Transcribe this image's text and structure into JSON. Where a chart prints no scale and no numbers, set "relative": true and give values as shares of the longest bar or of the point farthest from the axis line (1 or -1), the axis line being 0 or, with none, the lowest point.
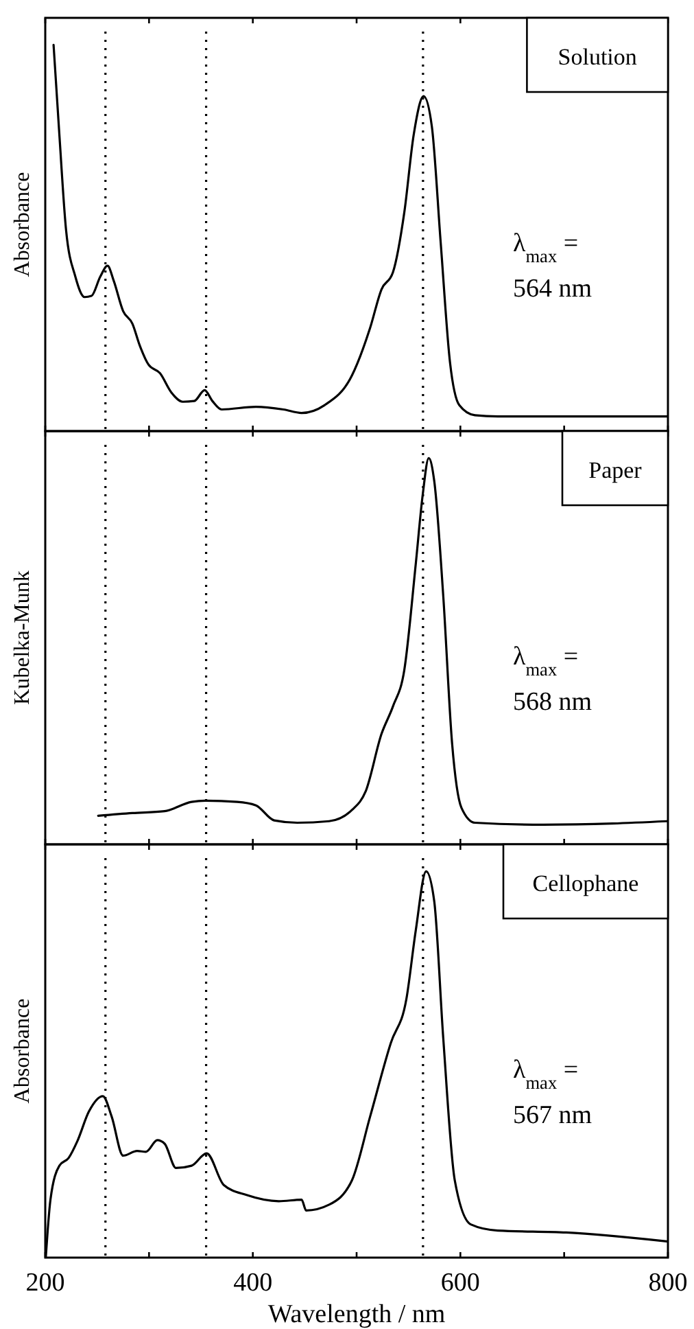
{
  "chart_data": [
    {
      "type": "line",
      "title": "Solution",
      "ylabel": "Absorbance",
      "relative": true,
      "tick_labels": false,
      "xlim": [
        200,
        800
      ],
      "xticks": [
        200,
        {
          "value": 300,
          "label": null
        },
        400,
        {
          "value": 500,
          "label": null
        },
        600,
        {
          "value": 700,
          "label": null
        },
        800
      ],
      "line_style": "solid",
      "annotations": [
        "λ$_{max}$ =",
        "564 nm"
      ],
      "ref_lines": [
        {
          "axis": "x",
          "value": 258,
          "label": null,
          "color": "#000000",
          "line_style": "dotted"
        },
        {
          "axis": "x",
          "value": 355,
          "label": null,
          "color": "#000000",
          "line_style": "dotted"
        },
        {
          "axis": "x",
          "value": 564,
          "label": null,
          "color": "#000000",
          "line_style": "dotted"
        }
      ],
      "series": [
        {
          "color": "#000000",
          "x": [
            208,
            213.6,
            220,
            229,
            238,
            244.5,
            253,
            260,
            266,
            275,
            284,
            291,
            299.5,
            310.5,
            321.5,
            332.5,
            343.6,
            353.6,
            361,
            370,
            403,
            429.5,
            447,
            469,
            495.5,
            513,
            524,
            535,
            546,
            555,
            564.6,
            572.5,
            581,
            590,
            599,
            614,
            636,
            799
          ],
          "values": [
            1,
            0.767,
            0.522,
            0.4,
            0.347,
            0.35,
            0.4,
            0.428,
            0.389,
            0.311,
            0.278,
            0.222,
            0.172,
            0.15,
            0.1,
            0.076,
            0.078,
            0.106,
            0.078,
            0.056,
            0.063,
            0.056,
            0.047,
            0.067,
            0.144,
            0.267,
            0.367,
            0.411,
            0.567,
            0.767,
            0.867,
            0.789,
            0.489,
            0.178,
            0.067,
            0.041,
            0.038,
            0.038
          ]
        }
      ]
    },
    {
      "type": "line",
      "title": "Paper",
      "ylabel": "Kubelka-Munk",
      "relative": true,
      "tick_labels": false,
      "xlim": [
        200,
        800
      ],
      "xticks": [
        200,
        {
          "value": 300,
          "label": null
        },
        400,
        {
          "value": 500,
          "label": null
        },
        600,
        {
          "value": 700,
          "label": null
        },
        800
      ],
      "line_style": "solid",
      "annotations": [
        "λ$_{max}$ =",
        "568 nm"
      ],
      "ref_lines": [
        {
          "axis": "x",
          "value": 258,
          "label": null,
          "color": "#000000",
          "line_style": "dotted"
        },
        {
          "axis": "x",
          "value": 355,
          "label": null,
          "color": "#000000",
          "line_style": "dotted"
        },
        {
          "axis": "x",
          "value": 564,
          "label": null,
          "color": "#000000",
          "line_style": "dotted"
        }
      ],
      "series": [
        {
          "color": "#000000",
          "x": [
            251,
            284,
            315,
            341,
            354.5,
            385,
            403,
            420.6,
            442.7,
            473.5,
            495.5,
            508.7,
            524,
            535,
            546,
            557,
            563.7,
            569.5,
            574.8,
            583.5,
            592,
            601,
            614,
            680,
            746.5,
            799
          ],
          "values": [
            0.074,
            0.081,
            0.086,
            0.11,
            0.113,
            0.11,
            0.101,
            0.062,
            0.056,
            0.06,
            0.089,
            0.137,
            0.286,
            0.357,
            0.452,
            0.726,
            0.905,
            1,
            0.941,
            0.643,
            0.262,
            0.095,
            0.056,
            0.051,
            0.054,
            0.06
          ]
        }
      ]
    },
    {
      "type": "line",
      "title": "Cellophane",
      "ylabel": "Absorbance",
      "xlabel": "Wavelength / nm",
      "relative": true,
      "tick_labels": "x",
      "xlim": [
        200,
        800
      ],
      "xticks": [
        200,
        {
          "value": 300,
          "label": null
        },
        400,
        {
          "value": 500,
          "label": null
        },
        600,
        {
          "value": 700,
          "label": null
        },
        800
      ],
      "line_style": "solid",
      "annotations": [
        "λ$_{max}$ =",
        "567 nm"
      ],
      "ref_lines": [
        {
          "axis": "x",
          "value": 258,
          "label": null,
          "color": "#000000",
          "line_style": "dotted"
        },
        {
          "axis": "x",
          "value": 355,
          "label": null,
          "color": "#000000",
          "line_style": "dotted"
        },
        {
          "axis": "x",
          "value": 564,
          "label": null,
          "color": "#000000",
          "line_style": "dotted"
        }
      ],
      "series": [
        {
          "color": "#000000",
          "x": [
            200.5,
            205,
            213.6,
            222.5,
            231,
            242,
            255.5,
            264,
            275,
            288.5,
            297,
            308,
            315,
            326,
            341,
            355.5,
            372,
            394,
            425,
            447,
            451.4,
            473.5,
            495.5,
            513,
            533,
            548,
            557,
            567,
            574.8,
            583.5,
            594.6,
            610,
            636,
            702,
            799
          ],
          "values": [
            0,
            0.15,
            0.238,
            0.258,
            0.302,
            0.378,
            0.418,
            0.365,
            0.264,
            0.276,
            0.274,
            0.304,
            0.295,
            0.232,
            0.238,
            0.27,
            0.188,
            0.162,
            0.146,
            0.15,
            0.122,
            0.137,
            0.2,
            0.365,
            0.556,
            0.67,
            0.847,
            1,
            0.923,
            0.568,
            0.2,
            0.086,
            0.07,
            0.065,
            0.042
          ]
        }
      ]
    }
  ]
}
